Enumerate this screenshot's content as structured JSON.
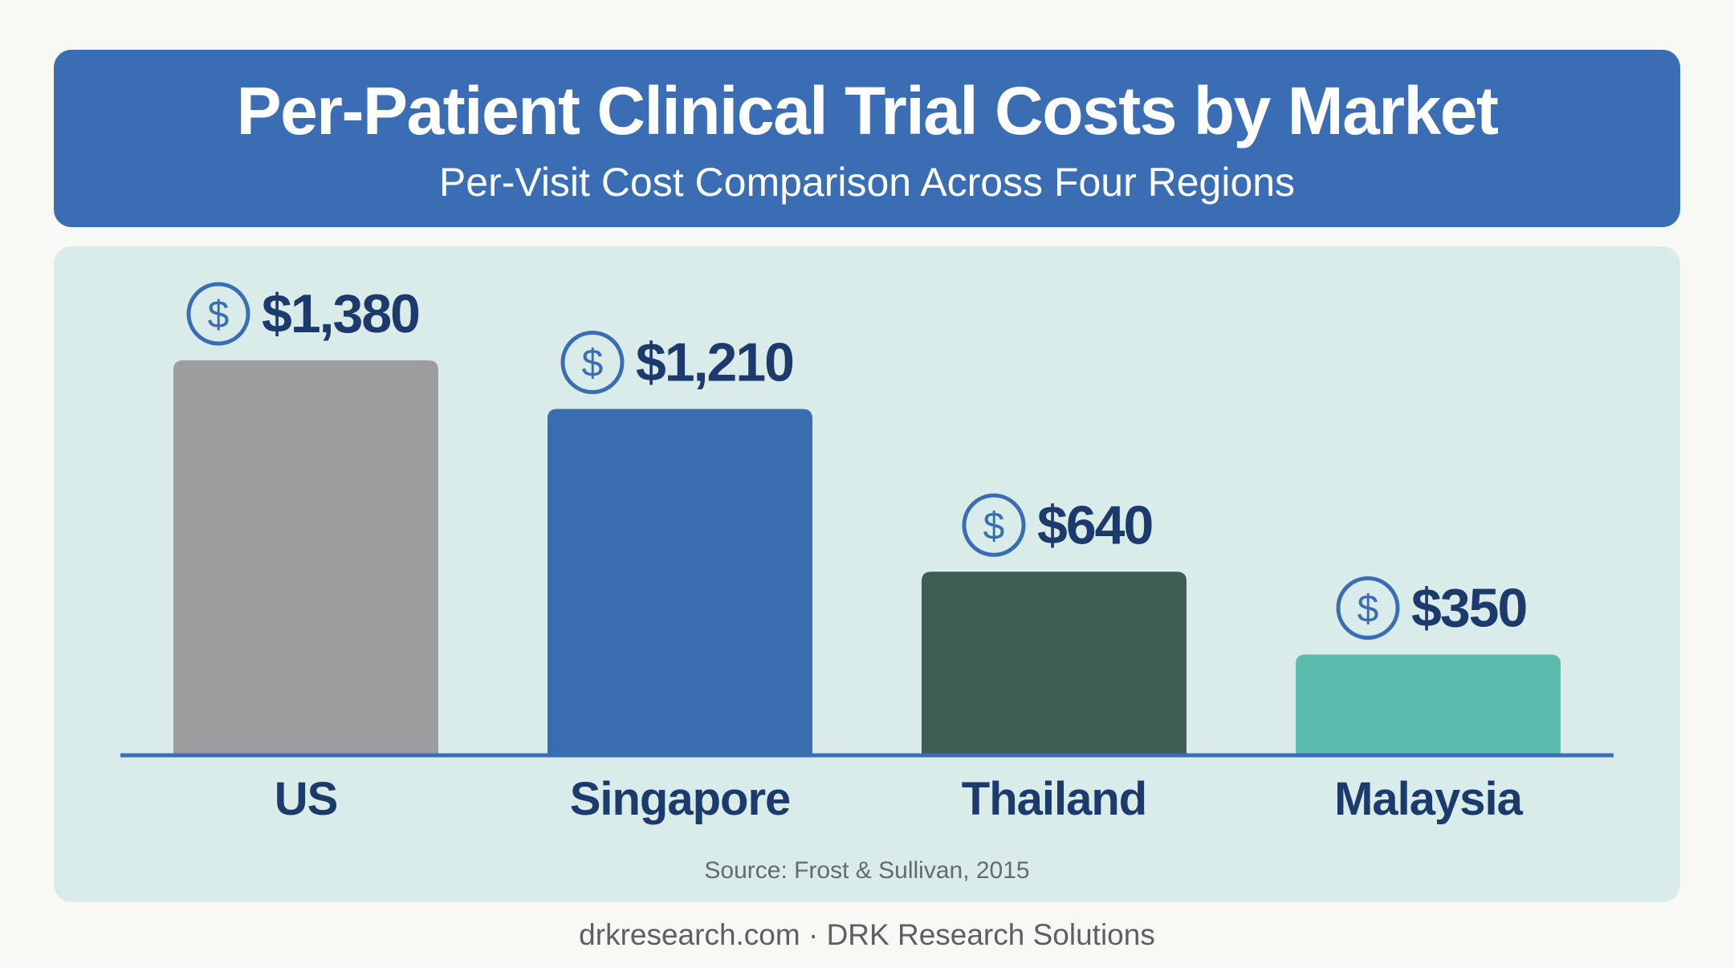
{
  "header": {
    "title": "Per-Patient Clinical Trial Costs by Market",
    "subtitle": "Per-Visit Cost Comparison Across Four Regions"
  },
  "chart_data": {
    "type": "bar",
    "title": "Per-Patient Clinical Trial Costs by Market",
    "subtitle": "Per-Visit Cost Comparison Across Four Regions",
    "categories": [
      "US",
      "Singapore",
      "Thailand",
      "Malaysia"
    ],
    "values": [
      1380,
      1210,
      640,
      350
    ],
    "value_labels": [
      "$1,380",
      "$1,210",
      "$640",
      "$350"
    ],
    "bar_colors": [
      "#9d9da0",
      "#386db0",
      "#3e5e52",
      "#59bcac"
    ],
    "value_icon": "dollar-circle-icon",
    "ylim": [
      0,
      1380
    ],
    "grid": false,
    "legend": "none",
    "xlabel": "",
    "ylabel": ""
  },
  "colors": {
    "header": "#3a6db3",
    "panel": "#daecea",
    "axis": "#3a6db3",
    "label_text": "#1c3a6c",
    "icon": "#3a6db3"
  },
  "source": "Source: Frost & Sullivan, 2015",
  "footer": "drkresearch.com · DRK Research Solutions"
}
